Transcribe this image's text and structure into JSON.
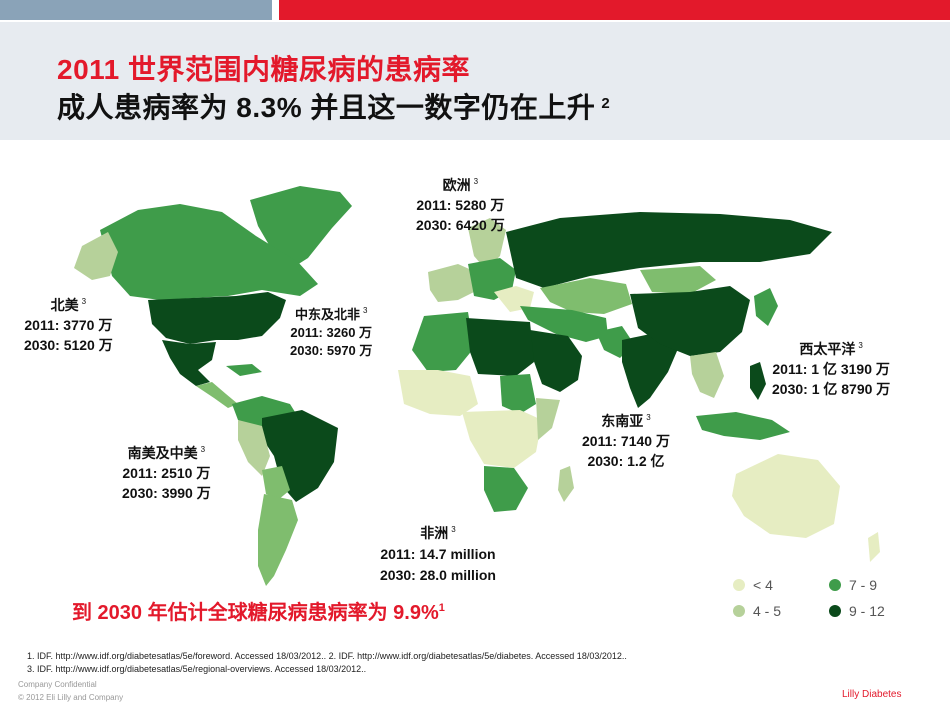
{
  "header": {
    "title_line1": "2011  世界范围内糖尿病的患病率",
    "title_line2": "成人患病率为 8.3%  并且这一数字仍在上升",
    "title_line2_ref": "2"
  },
  "map": {
    "colors": {
      "lt4": "#e6edc2",
      "4to5": "#b6d19a",
      "7to9": "#3f9c4a",
      "9to12": "#0b4a1b",
      "mid": "#7fbd6e"
    },
    "regions": {
      "europe": {
        "name": "欧洲",
        "ref": "3",
        "line1": "2011: 5280 万",
        "line2": "2030: 6420 万"
      },
      "north_america": {
        "name": "北美",
        "ref": "3",
        "line1": "2011: 3770 万",
        "line2": "2030: 5120 万"
      },
      "mena": {
        "name": "中东及北非",
        "ref": "3",
        "line1": "2011: 3260 万",
        "line2": "2030: 5970 万"
      },
      "western_pacific": {
        "name": "西太平洋",
        "ref": "3",
        "line1": "2011: 1 亿 3190 万",
        "line2": "2030: 1 亿 8790 万"
      },
      "south_central_america": {
        "name": "南美及中美",
        "ref": "3",
        "line1": "2011: 2510 万",
        "line2": "2030: 3990 万"
      },
      "southeast_asia": {
        "name": "东南亚",
        "ref": "3",
        "line1": "2011: 7140 万",
        "line2": "2030: 1.2 亿"
      },
      "africa": {
        "name": "非洲",
        "ref": "3",
        "line1": "2011: 14.7 million",
        "line2": "2030: 28.0 million"
      }
    }
  },
  "callout": {
    "text": "到 2030 年估计全球糖尿病患病率为 9.9%",
    "ref": "1"
  },
  "legend": [
    {
      "label": "< 4",
      "color": "#e6edc2"
    },
    {
      "label": "4 - 5",
      "color": "#b6d19a"
    },
    {
      "label": "7 - 9",
      "color": "#3f9c4a"
    },
    {
      "label": "9 - 12",
      "color": "#0b4a1b"
    }
  ],
  "references": {
    "line1": "1. IDF. http://www.idf.org/diabetesatlas/5e/foreword. Accessed 18/03/2012.. 2. IDF. http://www.idf.org/diabetesatlas/5e/diabetes. Accessed 18/03/2012..",
    "line2": "3. IDF. http://www.idf.org/diabetesatlas/5e/regional-overviews. Accessed 18/03/2012.."
  },
  "footer": {
    "confidential": "Company Confidential",
    "copyright": "© 2012 Eli Lilly and Company",
    "brand": "Lilly Diabetes"
  }
}
